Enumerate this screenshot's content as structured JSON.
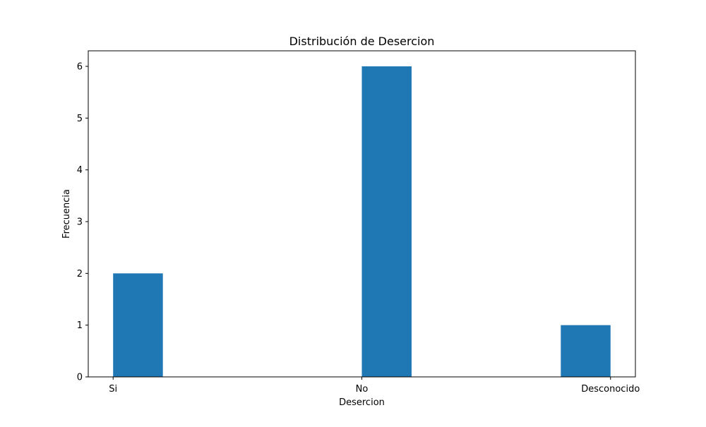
{
  "chart_data": {
    "type": "bar",
    "title": "Distribución de Desercion",
    "xlabel": "Desercion",
    "ylabel": "Frecuencia",
    "categories": [
      "Si",
      "No",
      "Desconocido"
    ],
    "values": [
      2,
      6,
      1
    ],
    "ylim": [
      0,
      6.3
    ],
    "yticks": [
      "0",
      "1",
      "2",
      "3",
      "4",
      "5",
      "6"
    ],
    "grid": false,
    "bar_color": "#1f77b4"
  }
}
